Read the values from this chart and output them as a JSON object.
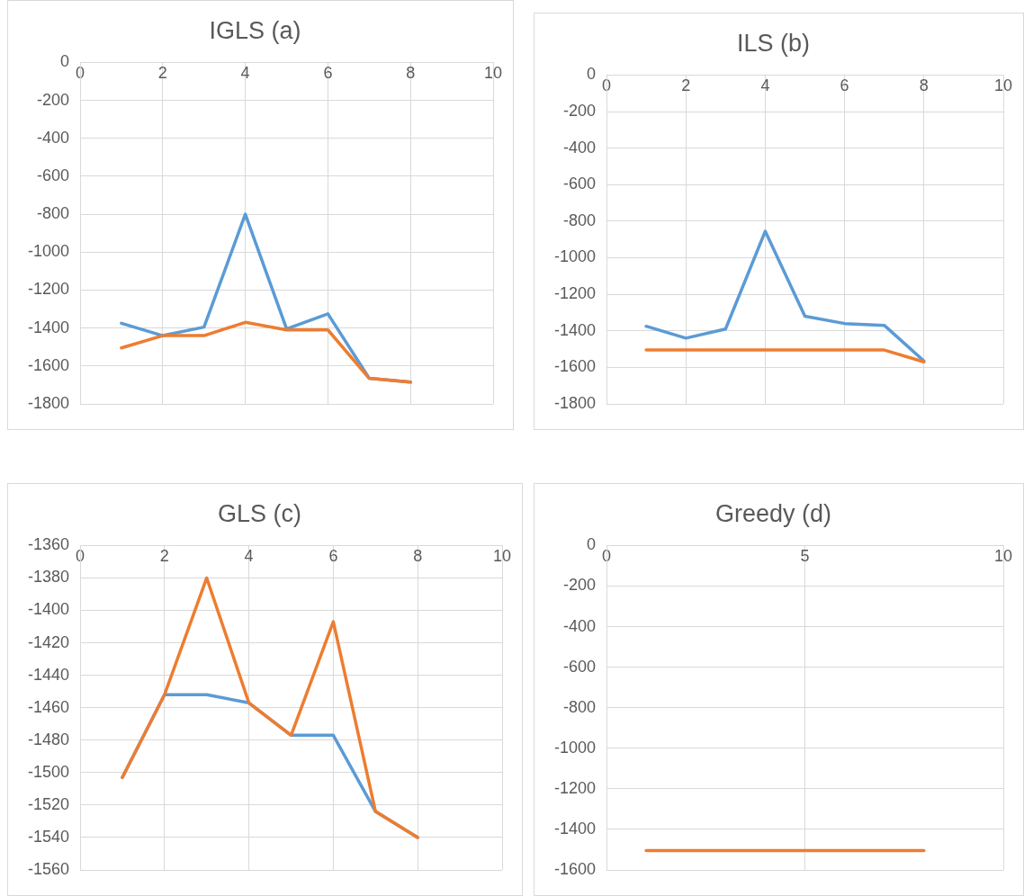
{
  "chart_data": [
    {
      "type": "line",
      "title": "IGLS (a)",
      "x": [
        1,
        2,
        3,
        4,
        5,
        6,
        7,
        8
      ],
      "xlim": [
        0,
        10
      ],
      "xticks": [
        0,
        2,
        4,
        6,
        8,
        10
      ],
      "ylim": [
        -1800,
        0
      ],
      "yticks": [
        -1800,
        -1600,
        -1400,
        -1200,
        -1000,
        -800,
        -600,
        -400,
        -200,
        0
      ],
      "grid": true,
      "series": [
        {
          "color": "#5b9bd5",
          "values": [
            -1375,
            -1440,
            -1395,
            -800,
            -1405,
            -1325,
            -1665,
            -1685
          ]
        },
        {
          "color": "#ed7d31",
          "values": [
            -1505,
            -1440,
            -1440,
            -1370,
            -1410,
            -1410,
            -1665,
            -1685
          ]
        }
      ]
    },
    {
      "type": "line",
      "title": "ILS (b)",
      "x": [
        1,
        2,
        3,
        4,
        5,
        6,
        7,
        8
      ],
      "xlim": [
        0,
        10
      ],
      "xticks": [
        0,
        2,
        4,
        6,
        8,
        10
      ],
      "ylim": [
        -1800,
        0
      ],
      "yticks": [
        -1800,
        -1600,
        -1400,
        -1200,
        -1000,
        -800,
        -600,
        -400,
        -200,
        0
      ],
      "grid": true,
      "series": [
        {
          "color": "#5b9bd5",
          "values": [
            -1375,
            -1440,
            -1390,
            -855,
            -1320,
            -1360,
            -1370,
            -1565
          ]
        },
        {
          "color": "#ed7d31",
          "values": [
            -1505,
            -1505,
            -1505,
            -1505,
            -1505,
            -1505,
            -1505,
            -1570
          ]
        }
      ]
    },
    {
      "type": "line",
      "title": "GLS (c)",
      "x": [
        1,
        2,
        3,
        4,
        5,
        6,
        7,
        8
      ],
      "xlim": [
        0,
        10
      ],
      "xticks": [
        0,
        2,
        4,
        6,
        8,
        10
      ],
      "ylim": [
        -1560,
        -1360
      ],
      "yticks": [
        -1560,
        -1540,
        -1520,
        -1500,
        -1480,
        -1460,
        -1440,
        -1420,
        -1400,
        -1380,
        -1360
      ],
      "grid": true,
      "series": [
        {
          "color": "#5b9bd5",
          "values": [
            -1503,
            -1452,
            -1452,
            -1457,
            -1477,
            -1477,
            -1524,
            -1540
          ]
        },
        {
          "color": "#ed7d31",
          "values": [
            -1503,
            -1452,
            -1380,
            -1457,
            -1477,
            -1407,
            -1524,
            -1540
          ]
        }
      ]
    },
    {
      "type": "line",
      "title": "Greedy (d)",
      "x": [
        1,
        2,
        3,
        4,
        5,
        6,
        7,
        8
      ],
      "xlim": [
        0,
        10
      ],
      "xticks": [
        0,
        5,
        10
      ],
      "ylim": [
        -1600,
        0
      ],
      "yticks": [
        -1600,
        -1400,
        -1200,
        -1000,
        -800,
        -600,
        -400,
        -200,
        0
      ],
      "grid": true,
      "series": [
        {
          "color": "#ed7d31",
          "values": [
            -1505,
            -1505,
            -1505,
            -1505,
            -1505,
            -1505,
            -1505,
            -1505
          ]
        }
      ]
    }
  ]
}
